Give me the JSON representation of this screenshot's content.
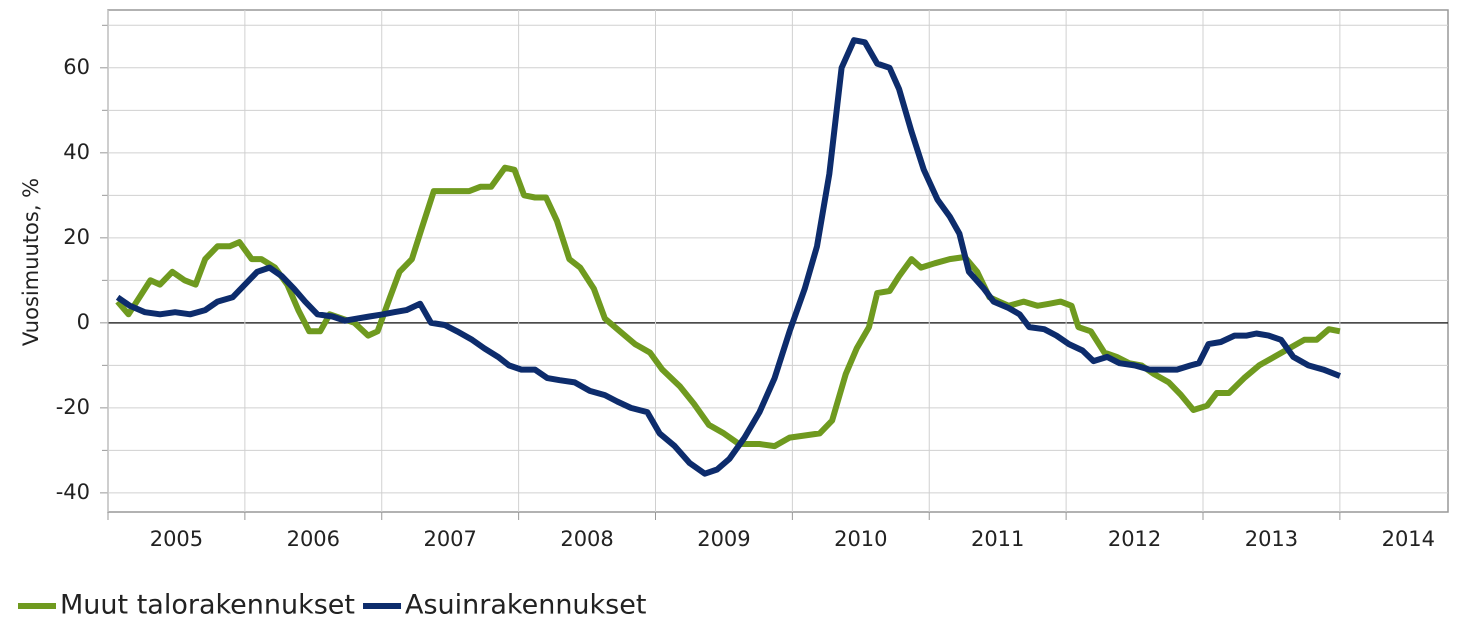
{
  "chart_data": {
    "type": "line",
    "y_label": "Vuosimuutos, %",
    "xlim": [
      2005,
      2014.79
    ],
    "xticks": [
      2005,
      2006,
      2007,
      2008,
      2009,
      2010,
      2011,
      2012,
      2013,
      2014
    ],
    "ylim": [
      -44.5,
      73.6
    ],
    "yticks": [
      -40,
      -20,
      0,
      20,
      40,
      60
    ],
    "yticks_minor": [
      -30,
      -10,
      10,
      30,
      50,
      70
    ],
    "grid": true,
    "legend": "bottom-left",
    "series": [
      {
        "name": "Muut talorakennukset",
        "color": "#6f9a1f",
        "x": [
          2005.07,
          2005.15,
          2005.23,
          2005.31,
          2005.38,
          2005.47,
          2005.56,
          2005.64,
          2005.71,
          2005.8,
          2005.89,
          2005.96,
          2006.05,
          2006.12,
          2006.22,
          2006.31,
          2006.39,
          2006.47,
          2006.55,
          2006.62,
          2006.71,
          2006.8,
          2006.9,
          2006.97,
          2007.06,
          2007.13,
          2007.22,
          2007.29,
          2007.38,
          2007.46,
          2007.55,
          2007.64,
          2007.72,
          2007.8,
          2007.9,
          2007.97,
          2008.04,
          2008.12,
          2008.2,
          2008.28,
          2008.37,
          2008.45,
          2008.55,
          2008.63,
          2008.74,
          2008.85,
          2008.96,
          2009.05,
          2009.18,
          2009.28,
          2009.39,
          2009.5,
          2009.61,
          2009.76,
          2009.87,
          2009.98,
          2010.09,
          2010.2,
          2010.29,
          2010.39,
          2010.47,
          2010.56,
          2010.62,
          2010.71,
          2010.78,
          2010.87,
          2010.94,
          2011.04,
          2011.15,
          2011.26,
          2011.35,
          2011.44,
          2011.51,
          2011.58,
          2011.69,
          2011.79,
          2011.88,
          2011.96,
          2012.04,
          2012.09,
          2012.18,
          2012.28,
          2012.37,
          2012.46,
          2012.55,
          2012.64,
          2012.75,
          2012.84,
          2012.93,
          2013.03,
          2013.1,
          2013.19,
          2013.3,
          2013.41,
          2013.52,
          2013.63,
          2013.74,
          2013.83,
          2013.92,
          2014.0
        ],
        "values": [
          5,
          2,
          6,
          10,
          9,
          12,
          10,
          9,
          15,
          18,
          18,
          19,
          15,
          15,
          13,
          9,
          3,
          -2,
          -2,
          2,
          1,
          0,
          -3,
          -2,
          6,
          12,
          15,
          22,
          31,
          31,
          31,
          31,
          32,
          32,
          36.5,
          36,
          30,
          29.5,
          29.5,
          24,
          15,
          13,
          8,
          1,
          -2,
          -5,
          -7,
          -11,
          -15,
          -19,
          -24,
          -26,
          -28.5,
          -28.5,
          -29,
          -27,
          -26.5,
          -26,
          -23,
          -12,
          -6,
          -1,
          7,
          7.5,
          11,
          15,
          13,
          14,
          15,
          15.5,
          12,
          6,
          5,
          4,
          5,
          4,
          4.5,
          5,
          4,
          -1,
          -2,
          -7,
          -8,
          -9.5,
          -10,
          -12,
          -14,
          -17,
          -20.5,
          -19.5,
          -16.5,
          -16.5,
          -13,
          -10,
          -8,
          -6,
          -4,
          -4,
          -1.5,
          -2
        ]
      },
      {
        "name": "Asuinrakennukset",
        "color": "#0d2c6c",
        "x": [
          2005.07,
          2005.16,
          2005.27,
          2005.38,
          2005.49,
          2005.6,
          2005.71,
          2005.8,
          2005.91,
          2006.0,
          2006.09,
          2006.18,
          2006.27,
          2006.36,
          2006.44,
          2006.53,
          2006.64,
          2006.73,
          2006.82,
          2006.91,
          2007.01,
          2007.09,
          2007.18,
          2007.28,
          2007.36,
          2007.46,
          2007.55,
          2007.66,
          2007.75,
          2007.85,
          2007.93,
          2008.02,
          2008.12,
          2008.21,
          2008.3,
          2008.41,
          2008.52,
          2008.63,
          2008.72,
          2008.82,
          2008.94,
          2009.03,
          2009.14,
          2009.25,
          2009.36,
          2009.45,
          2009.54,
          2009.65,
          2009.76,
          2009.87,
          2009.98,
          2010.09,
          2010.18,
          2010.27,
          2010.36,
          2010.45,
          2010.53,
          2010.62,
          2010.71,
          2010.78,
          2010.87,
          2010.96,
          2011.06,
          2011.15,
          2011.22,
          2011.29,
          2011.4,
          2011.47,
          2011.58,
          2011.66,
          2011.73,
          2011.84,
          2011.93,
          2012.02,
          2012.12,
          2012.2,
          2012.3,
          2012.39,
          2012.5,
          2012.61,
          2012.72,
          2012.81,
          2012.91,
          2012.97,
          2013.04,
          2013.13,
          2013.23,
          2013.32,
          2013.39,
          2013.48,
          2013.57,
          2013.66,
          2013.77,
          2013.88,
          2014.0
        ],
        "values": [
          6,
          4,
          2.5,
          2,
          2.5,
          2,
          3,
          5,
          6,
          9,
          12,
          13,
          11,
          8,
          5,
          2,
          1.5,
          0.5,
          1,
          1.5,
          2,
          2.5,
          3,
          4.5,
          0,
          -0.5,
          -2,
          -4,
          -6,
          -8,
          -10,
          -11,
          -11,
          -13,
          -13.5,
          -14,
          -16,
          -17,
          -18.5,
          -20,
          -21,
          -26,
          -29,
          -33,
          -35.5,
          -34.5,
          -32,
          -27,
          -21,
          -13,
          -2,
          8,
          18,
          35,
          60,
          66.5,
          66,
          61,
          60,
          55,
          45,
          36,
          29,
          25,
          21,
          12,
          8,
          5,
          3.5,
          2,
          -1,
          -1.5,
          -3,
          -5,
          -6.5,
          -9,
          -8,
          -9.5,
          -10,
          -11,
          -11,
          -11,
          -10,
          -9.5,
          -5,
          -4.5,
          -3,
          -3,
          -2.5,
          -3,
          -4,
          -8,
          -10,
          -11,
          -12.5
        ]
      }
    ]
  }
}
